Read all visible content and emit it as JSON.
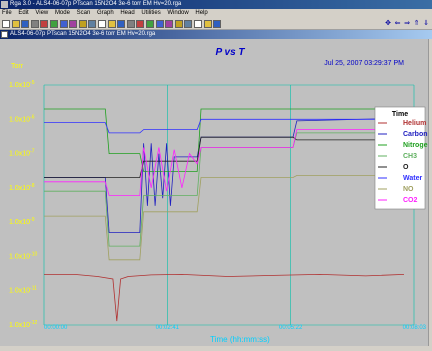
{
  "app": {
    "title": "Rga 3.0 - ALS4-06-07p PTscan 15N2O4 3e-6 torr EM Hv=20.rga"
  },
  "document": {
    "title": "ALS4-06-07p PTscan 15N2O4 3e-6 torr EM Hv=20.rga"
  },
  "menu": [
    "File",
    "Edit",
    "View",
    "Mode",
    "Scan",
    "Graph",
    "Head",
    "Utilities",
    "Window",
    "Help"
  ],
  "toolbar": {
    "icons": [
      "new-icon",
      "open-icon",
      "save-icon",
      "print-icon",
      "scan-icon",
      "probe-icon",
      "bar-icon",
      "line-icon",
      "grid-icon",
      "table-icon",
      "graph-icon",
      "settings-icon",
      "gauge-icon",
      "refresh-icon",
      "head-icon",
      "start-icon",
      "stop-icon",
      "pause-icon",
      "filament-icon",
      "em-icon",
      "degas-icon",
      "zoom-icon",
      "help-icon"
    ],
    "nav_icons": [
      "crosshair-icon",
      "arrow-left-icon",
      "arrow-right-icon",
      "arrow-up-icon",
      "arrow-down-icon"
    ]
  },
  "colors": {
    "plot_background": "#c0c0c0",
    "title_text": "#0000c8",
    "axis_label_text": "#ffff00",
    "timestamp_text": "#0000c8",
    "time_label_text": "#00d0ff",
    "grid_line": "#00c0a8"
  },
  "chart_data": {
    "type": "line",
    "title": "P vs T",
    "timestamp": "Jul 25, 2007  03:29:37 PM",
    "ylabel": "Torr",
    "xlabel": "Time (hh:mm:ss)",
    "yscale": "log",
    "ylim": [
      1e-12,
      1e-05
    ],
    "yticks": [
      {
        "base": "1.0x10",
        "exp": "-5"
      },
      {
        "base": "1.0x10",
        "exp": "-6"
      },
      {
        "base": "1.0x10",
        "exp": "-7"
      },
      {
        "base": "1.0x10",
        "exp": "-8"
      },
      {
        "base": "1.0x10",
        "exp": "-9"
      },
      {
        "base": "1.0x10",
        "exp": "-10"
      },
      {
        "base": "1.0x10",
        "exp": "-11"
      },
      {
        "base": "1.0x10",
        "exp": "-12"
      }
    ],
    "xticks": [
      "00:00:00",
      "00:02:41",
      "00:05:22",
      "00:08:03"
    ],
    "xlim": [
      0,
      483
    ],
    "grid": true,
    "legend_title": "Time",
    "legend_position": "right",
    "series": [
      {
        "name": "Helium",
        "color": "#b03030",
        "x": [
          0,
          40,
          70,
          90,
          95,
          100,
          110,
          140,
          180,
          240,
          300,
          360,
          420,
          470
        ],
        "y": [
          3e-11,
          3e-11,
          2.6e-11,
          2.2e-11,
          1.3e-12,
          2.2e-11,
          2.6e-11,
          2.9e-11,
          3e-11,
          2.6e-11,
          2.8e-11,
          3e-11,
          2.7e-11,
          3e-11
        ]
      },
      {
        "name": "Carbon",
        "color": "#2020c0",
        "x": [
          0,
          80,
          85,
          125,
          130,
          135,
          140,
          145,
          150,
          155,
          160,
          165,
          170,
          200,
          205,
          325,
          330,
          483
        ],
        "y": [
          2e-08,
          2e-08,
          5e-10,
          5e-10,
          2e-07,
          3e-09,
          2e-07,
          3e-09,
          1e-07,
          5e-09,
          2e-07,
          3e-09,
          8e-08,
          8e-08,
          3e-07,
          3e-07,
          9e-07,
          1.1e-06
        ]
      },
      {
        "name": "Nitrogen",
        "color": "#20a020",
        "x": [
          0,
          80,
          85,
          125,
          130,
          200,
          205,
          325,
          330,
          483
        ],
        "y": [
          2e-06,
          2e-06,
          1e-07,
          1e-07,
          3e-08,
          3e-08,
          2e-06,
          2e-06,
          2e-06,
          2e-06
        ]
      },
      {
        "name": "CH3",
        "color": "#60b060",
        "x": [
          0,
          80,
          85,
          125,
          130,
          200,
          205,
          325,
          330,
          483
        ],
        "y": [
          8e-09,
          8e-09,
          2e-10,
          2e-10,
          6e-09,
          6e-09,
          1.5e-07,
          1.5e-07,
          4e-07,
          4e-07
        ]
      },
      {
        "name": "O",
        "color": "#202020",
        "x": [
          0,
          80,
          85,
          125,
          130,
          200,
          205,
          325,
          330,
          483
        ],
        "y": [
          2e-08,
          2e-08,
          2e-08,
          2e-08,
          6e-08,
          6e-08,
          3e-07,
          3e-07,
          2.5e-07,
          2.5e-07
        ]
      },
      {
        "name": "Water",
        "color": "#3030ff",
        "x": [
          0,
          80,
          85,
          125,
          130,
          200,
          205,
          325,
          330,
          483
        ],
        "y": [
          8e-07,
          8e-07,
          4e-07,
          4e-07,
          5e-07,
          5e-07,
          1e-06,
          1e-06,
          1e-06,
          1e-06
        ]
      },
      {
        "name": "NO",
        "color": "#a0a060",
        "x": [
          0,
          80,
          85,
          125,
          130,
          200,
          205,
          325,
          330,
          483
        ],
        "y": [
          1.5e-09,
          1.5e-09,
          8e-11,
          8e-11,
          2e-09,
          2e-09,
          2e-08,
          2e-08,
          2.3e-08,
          2.3e-08
        ]
      },
      {
        "name": "CO2",
        "color": "#ff20ff",
        "x": [
          0,
          80,
          85,
          125,
          130,
          140,
          150,
          160,
          170,
          180,
          190,
          200,
          205,
          325,
          330,
          483
        ],
        "y": [
          1.5e-08,
          1.5e-08,
          6e-09,
          6e-09,
          1.5e-07,
          1e-08,
          1.5e-07,
          8e-09,
          1.3e-07,
          1e-08,
          1e-07,
          5e-08,
          1.5e-07,
          1.5e-07,
          5e-07,
          5e-07
        ]
      }
    ]
  }
}
